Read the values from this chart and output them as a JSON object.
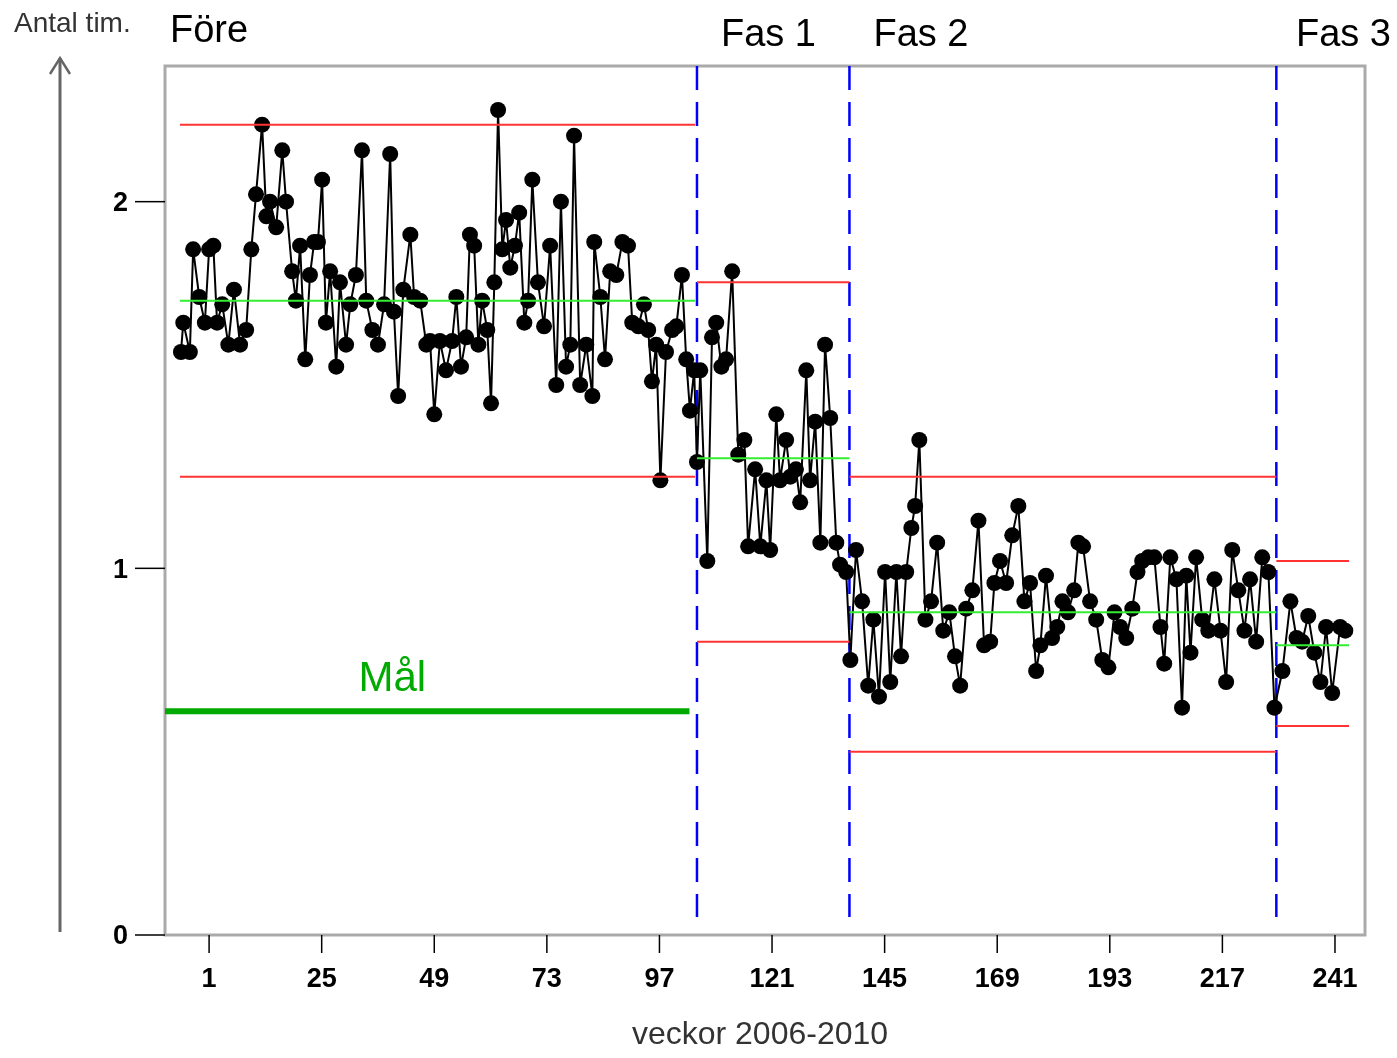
{
  "chart_data": {
    "type": "line",
    "ylabel": "Antal tim.",
    "xlabel": "veckor 2006-2010",
    "annotations": [
      "Före"
    ],
    "xlim": [
      -8.4,
      247.4
    ],
    "ylim": [
      0,
      2.37
    ],
    "xticks": [
      1,
      25,
      49,
      73,
      97,
      121,
      145,
      169,
      193,
      217,
      241
    ],
    "yticks": [
      0,
      1,
      2
    ],
    "grid": false,
    "marker": "circle",
    "line_style": "solid",
    "ref_lines": [
      {
        "axis": "x",
        "value": 105,
        "label": "Fas 1",
        "color": "#0000ff",
        "line_style": "dashed"
      },
      {
        "axis": "x",
        "value": 137.5,
        "label": "Fas 2",
        "color": "#0000ff",
        "line_style": "dashed"
      },
      {
        "axis": "x",
        "value": 228.5,
        "label": "Fas 3",
        "color": "#0000ff",
        "line_style": "dashed"
      }
    ],
    "series": [
      {
        "color": "#000000",
        "x": [
          -5.0,
          -4.5,
          -3.1,
          -2.4,
          -1.1,
          0.1,
          1.0,
          1.9,
          2.7,
          3.8,
          5.1,
          6.3,
          7.6,
          8.9,
          10.0,
          11.0,
          12.3,
          13.2,
          14.0,
          15.3,
          16.6,
          17.4,
          18.7,
          19.5,
          20.4,
          21.5,
          22.5,
          23.4,
          24.2,
          25.1,
          25.9,
          26.8,
          28.1,
          28.9,
          30.2,
          31.1,
          32.3,
          33.6,
          34.5,
          35.8,
          37.0,
          38.3,
          39.6,
          40.4,
          41.3,
          42.4,
          43.9,
          44.7,
          46.0,
          47.3,
          48.1,
          49.0,
          50.2,
          51.5,
          52.8,
          53.7,
          54.7,
          55.8,
          56.6,
          57.5,
          58.4,
          59.2,
          60.3,
          61.1,
          61.8,
          62.6,
          63.5,
          64.3,
          65.2,
          66.2,
          67.1,
          68.2,
          69.0,
          69.9,
          71.1,
          72.4,
          73.7,
          75.0,
          76.0,
          77.1,
          78.0,
          78.8,
          80.1,
          81.4,
          82.7,
          83.1,
          84.4,
          85.4,
          86.5,
          87.8,
          89.1,
          90.3,
          91.2,
          92.5,
          93.7,
          94.6,
          95.4,
          96.3,
          97.2,
          98.4,
          99.7,
          100.6,
          101.8,
          102.7,
          103.5,
          104.4,
          105.0,
          105.7,
          107.2,
          108.2,
          109.1,
          110.2,
          111.2,
          112.5,
          113.8,
          115.1,
          115.9,
          117.4,
          118.5,
          119.8,
          120.6,
          121.9,
          122.7,
          124.0,
          124.9,
          126.1,
          127.0,
          128.3,
          129.1,
          130.2,
          131.3,
          132.3,
          133.4,
          134.7,
          135.5,
          136.8,
          137.7,
          138.9,
          140.2,
          141.5,
          142.6,
          143.8,
          145.1,
          146.2,
          147.5,
          148.5,
          149.6,
          150.7,
          151.5,
          152.4,
          153.7,
          154.9,
          156.2,
          157.5,
          158.8,
          160.0,
          161.1,
          162.4,
          163.7,
          165.0,
          166.2,
          167.5,
          168.4,
          169.6,
          170.9,
          172.2,
          173.5,
          174.8,
          176.0,
          177.3,
          178.2,
          179.4,
          180.7,
          181.8,
          182.9,
          184.1,
          185.4,
          186.3,
          187.3,
          188.8,
          190.1,
          191.4,
          192.7,
          194.0,
          195.2,
          196.5,
          197.8,
          198.9,
          199.9,
          201.2,
          202.5,
          203.8,
          204.6,
          205.9,
          207.2,
          208.4,
          209.3,
          210.2,
          211.4,
          212.7,
          214.0,
          215.3,
          216.6,
          217.8,
          219.1,
          220.4,
          221.7,
          222.9,
          224.2,
          225.5,
          226.8,
          228.1,
          229.8,
          231.5,
          232.8,
          234.0,
          235.3,
          236.6,
          237.9,
          239.1,
          240.4,
          242.1,
          243.2
        ],
        "values": [
          1.59,
          1.67,
          1.59,
          1.87,
          1.74,
          1.67,
          1.87,
          1.88,
          1.67,
          1.72,
          1.61,
          1.76,
          1.61,
          1.65,
          1.87,
          2.02,
          2.21,
          1.96,
          2.0,
          1.93,
          2.14,
          2.0,
          1.81,
          1.73,
          1.88,
          1.57,
          1.8,
          1.89,
          1.89,
          2.06,
          1.67,
          1.81,
          1.55,
          1.78,
          1.61,
          1.72,
          1.8,
          2.14,
          1.73,
          1.65,
          1.61,
          1.72,
          2.13,
          1.7,
          1.47,
          1.76,
          1.91,
          1.74,
          1.73,
          1.61,
          1.62,
          1.42,
          1.62,
          1.54,
          1.62,
          1.74,
          1.55,
          1.63,
          1.91,
          1.88,
          1.61,
          1.73,
          1.65,
          1.45,
          1.78,
          2.25,
          1.87,
          1.95,
          1.82,
          1.88,
          1.97,
          1.67,
          1.73,
          2.06,
          1.78,
          1.66,
          1.88,
          1.5,
          2.0,
          1.55,
          1.61,
          2.18,
          1.5,
          1.61,
          1.47,
          1.89,
          1.74,
          1.57,
          1.81,
          1.8,
          1.89,
          1.88,
          1.67,
          1.66,
          1.72,
          1.65,
          1.51,
          1.61,
          1.24,
          1.59,
          1.65,
          1.66,
          1.8,
          1.57,
          1.43,
          1.54,
          1.29,
          1.54,
          1.02,
          1.63,
          1.67,
          1.55,
          1.57,
          1.81,
          1.31,
          1.35,
          1.06,
          1.27,
          1.06,
          1.24,
          1.05,
          1.42,
          1.24,
          1.35,
          1.25,
          1.27,
          1.18,
          1.54,
          1.24,
          1.4,
          1.07,
          1.61,
          1.41,
          1.07,
          1.01,
          0.99,
          0.75,
          1.05,
          0.91,
          0.68,
          0.86,
          0.65,
          0.99,
          0.69,
          0.99,
          0.76,
          0.99,
          1.11,
          1.17,
          1.35,
          0.86,
          0.91,
          1.07,
          0.83,
          0.88,
          0.76,
          0.68,
          0.89,
          0.94,
          1.13,
          0.79,
          0.8,
          0.96,
          1.02,
          0.96,
          1.09,
          1.17,
          0.91,
          0.96,
          0.72,
          0.79,
          0.98,
          0.81,
          0.84,
          0.91,
          0.88,
          0.94,
          1.07,
          1.06,
          0.91,
          0.86,
          0.75,
          0.73,
          0.88,
          0.84,
          0.81,
          0.89,
          0.99,
          1.02,
          1.03,
          1.03,
          0.84,
          0.74,
          1.03,
          0.97,
          0.62,
          0.98,
          0.77,
          1.03,
          0.86,
          0.83,
          0.97,
          0.83,
          0.69,
          1.05,
          0.94,
          0.83,
          0.97,
          0.8,
          1.03,
          0.99,
          0.62,
          0.72,
          0.91,
          0.81,
          0.8,
          0.87,
          0.77,
          0.69,
          0.84,
          0.66,
          0.84,
          0.83
        ]
      },
      {
        "color": "#ff3333",
        "marker": "none",
        "x": [
          -5.2,
          104.6
        ],
        "values": [
          2.21,
          2.21
        ]
      },
      {
        "color": "#ff3333",
        "marker": "none",
        "x": [
          -5.2,
          104.6
        ],
        "values": [
          1.25,
          1.25
        ]
      },
      {
        "color": "#33ee33",
        "marker": "none",
        "x": [
          -5.2,
          104.6
        ],
        "values": [
          1.73,
          1.73
        ]
      },
      {
        "color": "#ff3333",
        "marker": "none",
        "x": [
          105,
          137.5
        ],
        "values": [
          1.78,
          1.78
        ]
      },
      {
        "color": "#33ee33",
        "marker": "none",
        "x": [
          105,
          137.5
        ],
        "values": [
          1.3,
          1.3
        ]
      },
      {
        "color": "#ff3333",
        "marker": "none",
        "x": [
          105,
          137.5
        ],
        "values": [
          0.8,
          0.8
        ]
      },
      {
        "color": "#ff3333",
        "marker": "none",
        "x": [
          137.5,
          228.5
        ],
        "values": [
          1.25,
          1.25
        ]
      },
      {
        "color": "#33ee33",
        "marker": "none",
        "x": [
          137.5,
          228.5
        ],
        "values": [
          0.88,
          0.88
        ]
      },
      {
        "color": "#ff3333",
        "marker": "none",
        "x": [
          137.5,
          228.5
        ],
        "values": [
          0.5,
          0.5
        ]
      },
      {
        "color": "#ff3333",
        "marker": "none",
        "x": [
          228.5,
          244
        ],
        "values": [
          1.02,
          1.02
        ]
      },
      {
        "color": "#33ee33",
        "marker": "none",
        "x": [
          228.5,
          244
        ],
        "values": [
          0.79,
          0.79
        ]
      },
      {
        "color": "#ff3333",
        "marker": "none",
        "x": [
          228.5,
          244
        ],
        "values": [
          0.57,
          0.57
        ]
      },
      {
        "name": "Mål",
        "color": "#00aa00",
        "marker": "none",
        "x": [
          -8.4,
          103.4
        ],
        "values": [
          0.61,
          0.61
        ]
      }
    ]
  }
}
